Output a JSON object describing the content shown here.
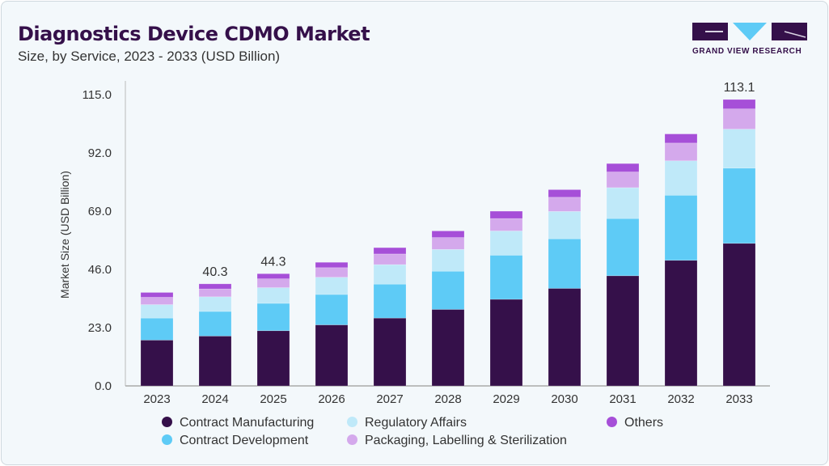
{
  "header": {
    "title": "Diagnostics Device CDMO Market",
    "subtitle": "Size, by Service, 2023 - 2033 (USD Billion)"
  },
  "logo": {
    "text": "GRAND VIEW RESEARCH",
    "colors": [
      "#35104a",
      "#5ecbf6"
    ]
  },
  "chart_data": {
    "type": "bar",
    "stacked": true,
    "title": "Diagnostics Device CDMO Market",
    "subtitle": "Size, by Service, 2023 - 2033 (USD Billion)",
    "xlabel": "",
    "ylabel": "Market Size (USD Billion)",
    "ylim": [
      0,
      115
    ],
    "yticks": [
      "0.0",
      "23.0",
      "46.0",
      "69.0",
      "92.0",
      "115.0"
    ],
    "grid": false,
    "legend_position": "bottom",
    "categories": [
      "2023",
      "2024",
      "2025",
      "2026",
      "2027",
      "2028",
      "2029",
      "2030",
      "2031",
      "2032",
      "2033"
    ],
    "series": [
      {
        "name": "Contract Manufacturing",
        "color": "#35104a",
        "values": [
          18.1,
          19.7,
          21.8,
          24.1,
          26.8,
          30.2,
          34.2,
          38.5,
          43.5,
          49.6,
          56.3
        ]
      },
      {
        "name": "Contract Development",
        "color": "#5ecbf6",
        "values": [
          8.7,
          9.7,
          10.8,
          12.0,
          13.4,
          15.1,
          17.4,
          19.6,
          22.6,
          25.7,
          29.7
        ]
      },
      {
        "name": "Regulatory Affairs",
        "color": "#bfe9f9",
        "values": [
          5.3,
          5.8,
          6.2,
          6.8,
          7.7,
          8.6,
          9.6,
          10.8,
          12.2,
          13.6,
          15.4
        ]
      },
      {
        "name": "Packaging, Labelling & Sterilization",
        "color": "#d4a9ec",
        "values": [
          2.9,
          3.1,
          3.5,
          3.8,
          4.2,
          4.7,
          4.9,
          5.6,
          6.2,
          7.0,
          8.0
        ]
      },
      {
        "name": "Others",
        "color": "#a64fd8",
        "values": [
          1.9,
          2.0,
          2.0,
          2.1,
          2.5,
          2.6,
          2.9,
          3.0,
          3.3,
          3.6,
          3.7
        ]
      }
    ],
    "data_labels": [
      {
        "category": "2024",
        "text": "40.3"
      },
      {
        "category": "2025",
        "text": "44.3"
      },
      {
        "category": "2033",
        "text": "113.1"
      }
    ]
  }
}
